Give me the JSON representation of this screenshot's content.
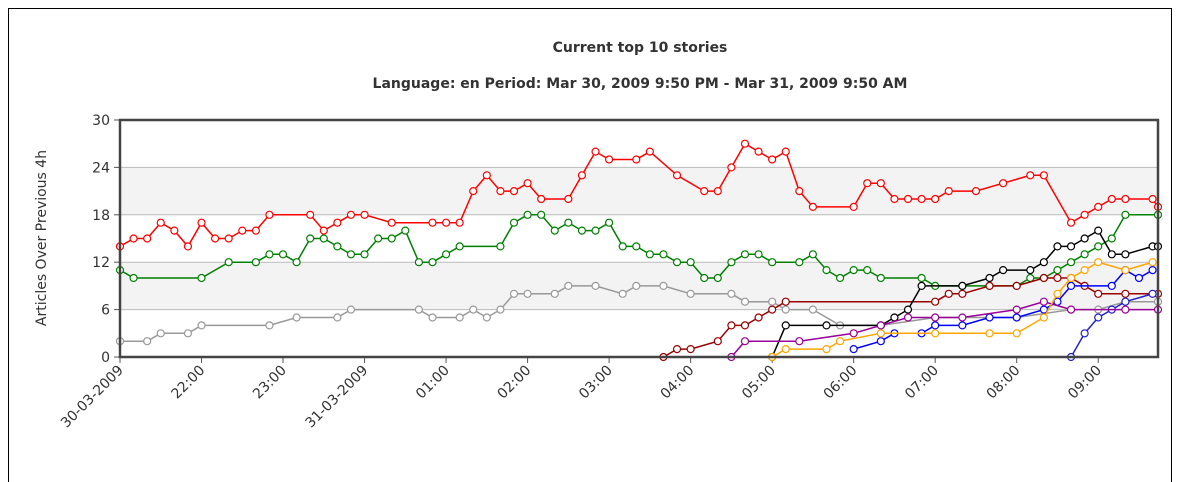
{
  "chart_data": {
    "type": "line",
    "title": "Current top 10 stories",
    "subtitle": "Language: en Period: Mar 30, 2009 9:50 PM - Mar 31, 2009 9:50 AM",
    "y_label": "Articles Over Previous 4h",
    "xlim": [
      0,
      764
    ],
    "xticks": [
      {
        "value": 0,
        "label": "30-03-2009"
      },
      {
        "value": 60,
        "label": "22:00"
      },
      {
        "value": 120,
        "label": "23:00"
      },
      {
        "value": 180,
        "label": "31-03-2009"
      },
      {
        "value": 240,
        "label": "01:00"
      },
      {
        "value": 300,
        "label": "02:00"
      },
      {
        "value": 360,
        "label": "03:00"
      },
      {
        "value": 420,
        "label": "04:00"
      },
      {
        "value": 480,
        "label": "05:00"
      },
      {
        "value": 540,
        "label": "06:00"
      },
      {
        "value": 600,
        "label": "07:00"
      },
      {
        "value": 660,
        "label": "08:00"
      },
      {
        "value": 720,
        "label": "09:00"
      }
    ],
    "ylim": [
      0,
      30
    ],
    "yticks": [
      0,
      6,
      12,
      18,
      24,
      30
    ],
    "grid": true,
    "alternate_bands": true,
    "series": [
      {
        "color": "#ff0000",
        "x": [
          0,
          10,
          20,
          30,
          40,
          50,
          60,
          70,
          80,
          90,
          100,
          110,
          140,
          150,
          160,
          170,
          180,
          200,
          230,
          240,
          250,
          260,
          270,
          280,
          290,
          300,
          310,
          330,
          340,
          350,
          360,
          380,
          390,
          410,
          430,
          440,
          450,
          460,
          470,
          480,
          490,
          500,
          510,
          540,
          550,
          560,
          570,
          580,
          590,
          600,
          610,
          630,
          650,
          670,
          680,
          700,
          710,
          720,
          730,
          740,
          760,
          764
        ],
        "values": [
          14,
          15,
          15,
          17,
          16,
          14,
          17,
          15,
          15,
          16,
          16,
          18,
          18,
          16,
          17,
          18,
          18,
          17,
          17,
          17,
          17,
          21,
          23,
          21,
          21,
          22,
          20,
          20,
          23,
          26,
          25,
          25,
          26,
          23,
          21,
          21,
          24,
          27,
          26,
          25,
          26,
          21,
          19,
          19,
          22,
          22,
          20,
          20,
          20,
          20,
          21,
          21,
          22,
          23,
          23,
          17,
          18,
          19,
          20,
          20,
          20,
          19
        ]
      },
      {
        "color": "#008000",
        "x": [
          0,
          10,
          60,
          80,
          100,
          110,
          120,
          130,
          140,
          150,
          160,
          170,
          180,
          190,
          200,
          210,
          220,
          230,
          240,
          250,
          280,
          290,
          300,
          310,
          320,
          330,
          340,
          350,
          360,
          370,
          380,
          390,
          400,
          410,
          420,
          430,
          440,
          450,
          460,
          470,
          480,
          500,
          510,
          520,
          530,
          540,
          550,
          560,
          590,
          600,
          620,
          640,
          660,
          670,
          680,
          690,
          700,
          710,
          720,
          730,
          740,
          764
        ],
        "values": [
          11,
          10,
          10,
          12,
          12,
          13,
          13,
          12,
          15,
          15,
          14,
          13,
          13,
          15,
          15,
          16,
          12,
          12,
          13,
          14,
          14,
          17,
          18,
          18,
          16,
          17,
          16,
          16,
          17,
          14,
          14,
          13,
          13,
          12,
          12,
          10,
          10,
          12,
          13,
          13,
          12,
          12,
          13,
          11,
          10,
          11,
          11,
          10,
          10,
          9,
          9,
          9,
          9,
          10,
          10,
          11,
          12,
          13,
          14,
          15,
          18,
          18
        ]
      },
      {
        "color": "#999999",
        "x": [
          0,
          20,
          30,
          50,
          60,
          110,
          130,
          160,
          170,
          220,
          230,
          250,
          260,
          270,
          280,
          290,
          300,
          320,
          330,
          350,
          370,
          380,
          400,
          420,
          450,
          460,
          480,
          490,
          510,
          530,
          560,
          600,
          660,
          700,
          720,
          740,
          764
        ],
        "values": [
          2,
          2,
          3,
          3,
          4,
          4,
          5,
          5,
          6,
          6,
          5,
          5,
          6,
          5,
          6,
          8,
          8,
          8,
          9,
          9,
          8,
          9,
          9,
          8,
          8,
          7,
          7,
          6,
          6,
          4,
          4,
          5,
          5,
          6,
          6,
          7,
          7
        ]
      },
      {
        "color": "#990000",
        "x": [
          400,
          410,
          420,
          440,
          450,
          460,
          470,
          480,
          490,
          600,
          610,
          620,
          640,
          660,
          680,
          690,
          700,
          710,
          720,
          740,
          764
        ],
        "values": [
          0,
          1,
          1,
          2,
          4,
          4,
          5,
          6,
          7,
          7,
          8,
          8,
          9,
          9,
          10,
          10,
          10,
          9,
          8,
          8,
          8
        ]
      },
      {
        "color": "#000000",
        "x": [
          480,
          490,
          520,
          560,
          570,
          580,
          590,
          620,
          640,
          650,
          670,
          680,
          690,
          700,
          710,
          720,
          730,
          740,
          760,
          764
        ],
        "values": [
          0,
          4,
          4,
          4,
          5,
          6,
          9,
          9,
          10,
          11,
          11,
          12,
          14,
          14,
          15,
          16,
          13,
          13,
          14,
          14
        ]
      },
      {
        "color": "#0000ff",
        "x": [
          540,
          560,
          570,
          590,
          600,
          620,
          640,
          660,
          680,
          690,
          700,
          730,
          740,
          750,
          760
        ],
        "values": [
          1,
          2,
          3,
          3,
          4,
          4,
          5,
          5,
          6,
          7,
          9,
          9,
          11,
          10,
          11
        ]
      },
      {
        "color": "#2222cc",
        "x": [
          700,
          710,
          720,
          730,
          740,
          760
        ],
        "values": [
          0,
          3,
          5,
          6,
          7,
          8
        ]
      },
      {
        "color": "#990099",
        "x": [
          450,
          460,
          500,
          540,
          560,
          580,
          600,
          620,
          660,
          680,
          700,
          740,
          764
        ],
        "values": [
          0,
          2,
          2,
          3,
          4,
          5,
          5,
          5,
          6,
          7,
          6,
          6,
          6
        ]
      },
      {
        "color": "#ffa500",
        "x": [
          480,
          490,
          520,
          530,
          560,
          600,
          640,
          660,
          680,
          690,
          700,
          710,
          720,
          740,
          760
        ],
        "values": [
          0,
          1,
          1,
          2,
          3,
          3,
          3,
          3,
          5,
          8,
          10,
          11,
          12,
          11,
          12
        ]
      }
    ]
  }
}
